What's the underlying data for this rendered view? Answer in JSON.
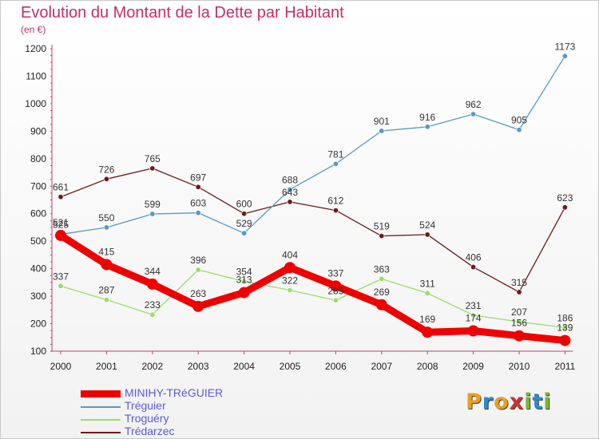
{
  "title": "Evolution du Montant de la Dette par Habitant",
  "subtitle": "(en €)",
  "logo": {
    "text": "Proxiti",
    "letters": [
      "P",
      "r",
      "o",
      "x",
      "i",
      "t",
      "i"
    ],
    "colors": [
      "#e8a020",
      "#2a8ad0",
      "#e8a020",
      "#d03030",
      "#7ab830",
      "#2a8ad0",
      "#7ab830"
    ]
  },
  "chart_data": {
    "type": "line",
    "x": [
      "2000",
      "2001",
      "2002",
      "2003",
      "2004",
      "2005",
      "2006",
      "2007",
      "2008",
      "2009",
      "2010",
      "2011"
    ],
    "ylim": [
      100,
      1200
    ],
    "yticks": [
      100,
      200,
      300,
      400,
      500,
      600,
      700,
      800,
      900,
      1000,
      1100,
      1200
    ],
    "grid": false,
    "legend_position": "bottom-left",
    "series": [
      {
        "name": "Trédarzec",
        "color": "#6e1a1a",
        "values": [
          661,
          726,
          765,
          697,
          600,
          643,
          612,
          519,
          524,
          406,
          315,
          623
        ]
      },
      {
        "name": "Troguéry",
        "color": "#99dd66",
        "values": [
          337,
          287,
          233,
          396,
          354,
          322,
          285,
          363,
          311,
          231,
          207,
          186
        ]
      },
      {
        "name": "Tréguier",
        "color": "#5599cc",
        "values": [
          525,
          550,
          599,
          603,
          529,
          688,
          781,
          901,
          916,
          962,
          905,
          1173
        ]
      },
      {
        "name": "MINIHY-TRéGUIER",
        "color": "#ee0000",
        "values": [
          521,
          415,
          344,
          263,
          313,
          404,
          337,
          269,
          169,
          174,
          156,
          139
        ]
      }
    ],
    "legend_order": [
      "MINIHY-TRéGUIER",
      "Tréguier",
      "Troguéry",
      "Trédarzec"
    ]
  }
}
